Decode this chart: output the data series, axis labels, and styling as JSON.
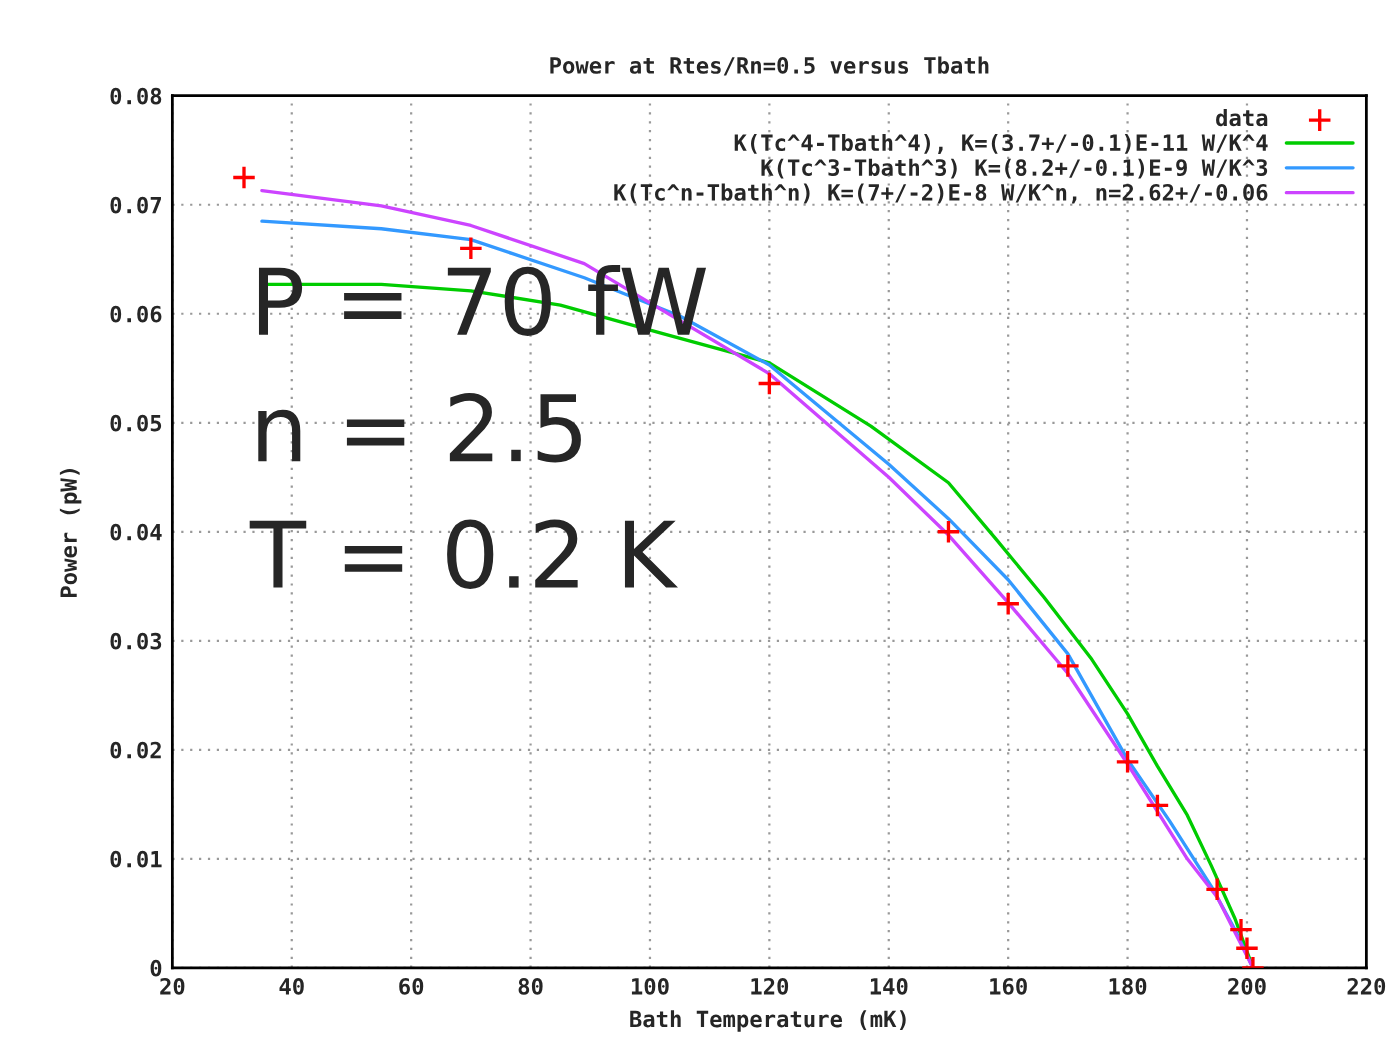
{
  "chart_data": {
    "type": "line",
    "title": "Power at Rtes/Rn=0.5 versus Tbath",
    "xlabel": "Bath Temperature (mK)",
    "ylabel": "Power (pW)",
    "xlim": [
      20,
      220
    ],
    "xticks": [
      20,
      40,
      60,
      80,
      100,
      120,
      140,
      160,
      180,
      200,
      220
    ],
    "ylim": [
      0,
      0.08
    ],
    "yticks": [
      0,
      0.01,
      0.02,
      0.03,
      0.04,
      0.05,
      0.06,
      0.07,
      0.08
    ],
    "grid": true,
    "legend": "top right",
    "series": [
      {
        "name": "data",
        "type": "scatter",
        "marker": "cross",
        "color": "#ff0000",
        "x": [
          32,
          70,
          120,
          150,
          160,
          170,
          180,
          185,
          195,
          199,
          200,
          201
        ],
        "values": [
          0.0725,
          0.066,
          0.0536,
          0.04,
          0.0334,
          0.0277,
          0.0189,
          0.0149,
          0.0072,
          0.0035,
          0.0018,
          0
        ]
      },
      {
        "name": "K(Tc^4-Tbath^4), K=(3.7+/-0.1)E-11 W/K^4",
        "color": "#00cc00",
        "x": [
          35,
          55,
          70,
          85,
          102,
          120,
          137,
          150,
          158,
          166,
          174,
          180,
          185,
          190,
          194,
          198,
          201
        ],
        "values": [
          0.0627,
          0.0627,
          0.0621,
          0.0608,
          0.0582,
          0.0555,
          0.0497,
          0.0445,
          0.0393,
          0.034,
          0.0283,
          0.0233,
          0.0185,
          0.014,
          0.0094,
          0.0045,
          0
        ]
      },
      {
        "name": "K(Tc^3-Tbath^3) K=(8.2+/-0.1)E-9 W/K^3",
        "color": "#3399ff",
        "x": [
          35,
          55,
          70,
          89,
          105,
          120,
          140,
          150,
          160,
          170,
          180,
          187,
          194,
          198,
          201
        ],
        "values": [
          0.0685,
          0.0678,
          0.0668,
          0.0633,
          0.0598,
          0.0553,
          0.0462,
          0.0412,
          0.0356,
          0.0288,
          0.0191,
          0.0135,
          0.0075,
          0.0035,
          0
        ]
      },
      {
        "name": "K(Tc^n-Tbath^n) K=(7+/-2)E-8 W/K^n, n=2.62+/-0.06",
        "color": "#cc44ff",
        "x": [
          35,
          55,
          70,
          89,
          100,
          120,
          140,
          150,
          160,
          170,
          180,
          190,
          195,
          201
        ],
        "values": [
          0.0713,
          0.0699,
          0.0681,
          0.0646,
          0.061,
          0.0545,
          0.045,
          0.0397,
          0.0335,
          0.027,
          0.0187,
          0.01,
          0.0065,
          0
        ]
      }
    ],
    "annotations": [
      {
        "text": "P = 70 fW"
      },
      {
        "text": "n = 2.5"
      },
      {
        "text": "T = 0.2 K"
      }
    ]
  }
}
